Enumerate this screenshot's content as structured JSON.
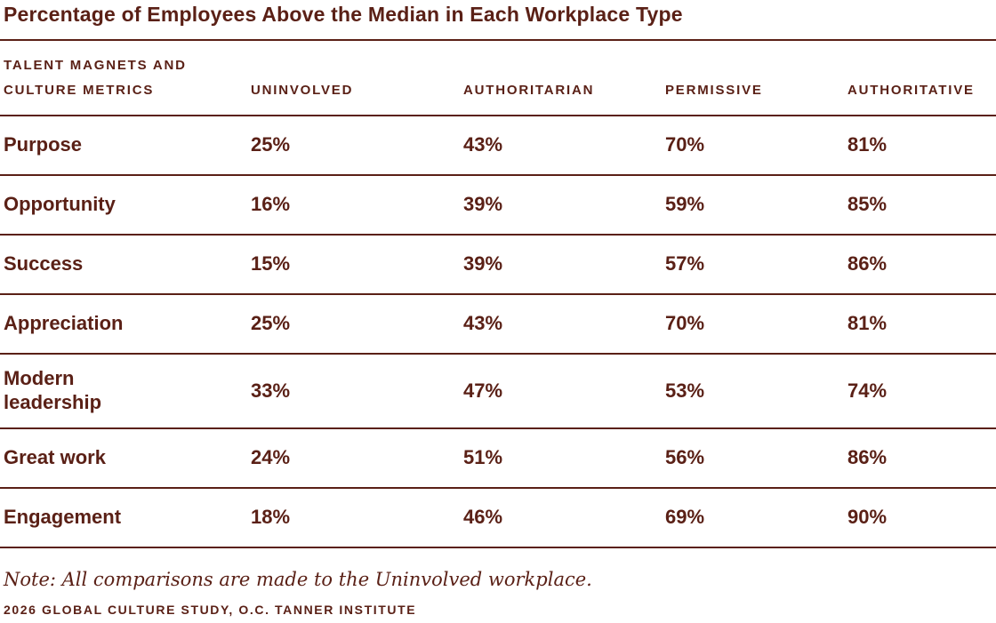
{
  "colors": {
    "text": "#5a2016",
    "rule": "#5a2016",
    "background": "#ffffff"
  },
  "title": "Percentage of Employees Above the Median in Each Workplace Type",
  "table": {
    "metric_header_lines": [
      "TALENT MAGNETS AND",
      "CULTURE METRICS"
    ],
    "columns": [
      "UNINVOLVED",
      "AUTHORITARIAN",
      "PERMISSIVE",
      "AUTHORITATIVE"
    ],
    "rows": [
      {
        "label": "Purpose",
        "values": [
          "25%",
          "43%",
          "70%",
          "81%"
        ]
      },
      {
        "label": "Opportunity",
        "values": [
          "16%",
          "39%",
          "59%",
          "85%"
        ]
      },
      {
        "label": "Success",
        "values": [
          "15%",
          "39%",
          "57%",
          "86%"
        ]
      },
      {
        "label": "Appreciation",
        "values": [
          "25%",
          "43%",
          "70%",
          "81%"
        ]
      },
      {
        "label": "Modern leadership",
        "values": [
          "33%",
          "47%",
          "53%",
          "74%"
        ]
      },
      {
        "label": "Great work",
        "values": [
          "24%",
          "51%",
          "56%",
          "86%"
        ]
      },
      {
        "label": "Engagement",
        "values": [
          "18%",
          "46%",
          "69%",
          "90%"
        ]
      }
    ]
  },
  "note": "Note: All comparisons are made to the Uninvolved workplace.",
  "source": "2026 GLOBAL CULTURE STUDY, O.C. TANNER INSTITUTE",
  "chart_data": {
    "type": "table",
    "title": "Percentage of Employees Above the Median in Each Workplace Type",
    "categories": [
      "Purpose",
      "Opportunity",
      "Success",
      "Appreciation",
      "Modern leadership",
      "Great work",
      "Engagement"
    ],
    "series": [
      {
        "name": "Uninvolved",
        "values": [
          25,
          16,
          15,
          25,
          33,
          24,
          18
        ]
      },
      {
        "name": "Authoritarian",
        "values": [
          43,
          39,
          39,
          43,
          47,
          51,
          46
        ]
      },
      {
        "name": "Permissive",
        "values": [
          70,
          59,
          57,
          70,
          53,
          56,
          69
        ]
      },
      {
        "name": "Authoritative",
        "values": [
          81,
          85,
          86,
          81,
          74,
          86,
          90
        ]
      }
    ],
    "unit": "%",
    "row_header_label": "Talent magnets and culture metrics",
    "note": "Note: All comparisons are made to the Uninvolved workplace.",
    "source": "2026 Global Culture Study, O.C. Tanner Institute"
  }
}
